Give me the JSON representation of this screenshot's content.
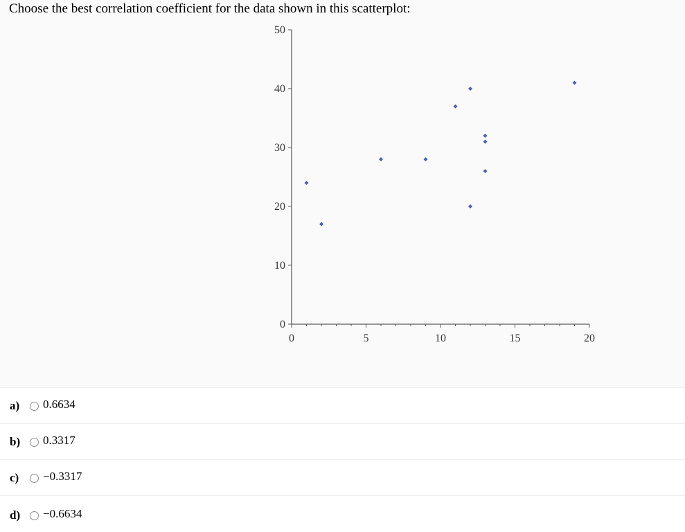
{
  "question": {
    "text": "Choose the best correlation coefficient for the data shown in this scatterplot:"
  },
  "chart_data": {
    "type": "scatter",
    "title": "",
    "xlabel": "",
    "ylabel": "",
    "xlim": [
      0,
      20
    ],
    "ylim": [
      0,
      50
    ],
    "x_ticks": [
      0,
      5,
      10,
      15,
      20
    ],
    "y_ticks": [
      0,
      10,
      20,
      30,
      40,
      50
    ],
    "grid": false,
    "marker_color": "#4a5fb8",
    "points": [
      {
        "x": 1,
        "y": 24
      },
      {
        "x": 2,
        "y": 17
      },
      {
        "x": 6,
        "y": 28
      },
      {
        "x": 9,
        "y": 28
      },
      {
        "x": 11,
        "y": 37
      },
      {
        "x": 12,
        "y": 40
      },
      {
        "x": 12,
        "y": 20
      },
      {
        "x": 13,
        "y": 32
      },
      {
        "x": 13,
        "y": 31
      },
      {
        "x": 13,
        "y": 26
      },
      {
        "x": 19,
        "y": 41
      }
    ]
  },
  "options": [
    {
      "letter": "a)",
      "value": "0.6634"
    },
    {
      "letter": "b)",
      "value": "0.3317"
    },
    {
      "letter": "c)",
      "value": "−0.3317"
    },
    {
      "letter": "d)",
      "value": "−0.6634"
    }
  ]
}
